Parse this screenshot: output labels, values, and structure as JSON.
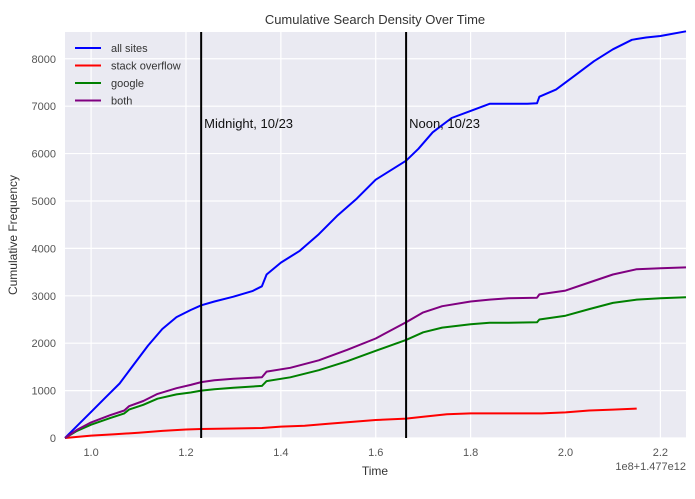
{
  "chart_data": {
    "type": "line",
    "title": "Cumulative Search Density Over Time",
    "xlabel": "Time",
    "ylabel": "Cumulative Frequency",
    "x_offset_label": "1e8+1.477e12",
    "xlim": [
      0.945,
      2.254
    ],
    "ylim": [
      0,
      8565
    ],
    "xticks": [
      1.0,
      1.2,
      1.4,
      1.6,
      1.8,
      2.0,
      2.2
    ],
    "xtick_labels": [
      "1.0",
      "1.2",
      "1.4",
      "1.6",
      "1.8",
      "2.0",
      "2.2"
    ],
    "yticks": [
      0,
      1000,
      2000,
      3000,
      4000,
      5000,
      6000,
      7000,
      8000
    ],
    "ytick_labels": [
      "0",
      "1000",
      "2000",
      "3000",
      "4000",
      "5000",
      "6000",
      "7000",
      "8000"
    ],
    "grid": true,
    "background": "#eaeaf2",
    "legend": {
      "position": "upper left",
      "entries": [
        "all sites",
        "stack overflow",
        "google",
        "both"
      ]
    },
    "series": [
      {
        "name": "all sites",
        "color": "#0000ff",
        "x": [
          0.945,
          0.97,
          1.0,
          1.03,
          1.06,
          1.09,
          1.12,
          1.15,
          1.18,
          1.21,
          1.232,
          1.26,
          1.3,
          1.34,
          1.36,
          1.37,
          1.4,
          1.44,
          1.48,
          1.52,
          1.56,
          1.6,
          1.64,
          1.664,
          1.69,
          1.72,
          1.76,
          1.8,
          1.84,
          1.88,
          1.92,
          1.94,
          1.945,
          1.98,
          2.02,
          2.06,
          2.1,
          2.14,
          2.17,
          2.2,
          2.254
        ],
        "y": [
          0,
          250,
          550,
          850,
          1150,
          1550,
          1950,
          2300,
          2550,
          2700,
          2800,
          2880,
          2980,
          3100,
          3200,
          3450,
          3700,
          3950,
          4300,
          4700,
          5050,
          5450,
          5700,
          5850,
          6100,
          6450,
          6750,
          6900,
          7050,
          7050,
          7050,
          7060,
          7200,
          7350,
          7650,
          7950,
          8200,
          8400,
          8450,
          8480,
          8580
        ]
      },
      {
        "name": "stack overflow",
        "color": "#ff0000",
        "x": [
          0.945,
          1.0,
          1.05,
          1.1,
          1.15,
          1.2,
          1.232,
          1.3,
          1.36,
          1.4,
          1.45,
          1.5,
          1.55,
          1.6,
          1.664,
          1.7,
          1.75,
          1.8,
          1.9,
          1.95,
          2.0,
          2.05,
          2.1,
          2.15
        ],
        "y": [
          0,
          50,
          80,
          110,
          150,
          180,
          190,
          200,
          210,
          240,
          260,
          300,
          340,
          380,
          410,
          450,
          500,
          520,
          520,
          520,
          540,
          580,
          600,
          620
        ]
      },
      {
        "name": "google",
        "color": "#008000",
        "x": [
          0.945,
          0.97,
          1.0,
          1.04,
          1.07,
          1.08,
          1.11,
          1.14,
          1.18,
          1.21,
          1.232,
          1.26,
          1.3,
          1.36,
          1.37,
          1.42,
          1.48,
          1.54,
          1.6,
          1.664,
          1.7,
          1.74,
          1.8,
          1.84,
          1.88,
          1.94,
          1.945,
          2.0,
          2.05,
          2.1,
          2.15,
          2.2,
          2.254
        ],
        "y": [
          0,
          150,
          280,
          420,
          520,
          600,
          700,
          830,
          920,
          960,
          1000,
          1030,
          1060,
          1100,
          1200,
          1280,
          1430,
          1620,
          1840,
          2070,
          2230,
          2330,
          2400,
          2430,
          2430,
          2440,
          2500,
          2580,
          2720,
          2850,
          2920,
          2950,
          2970
        ]
      },
      {
        "name": "both",
        "color": "#800080",
        "x": [
          0.945,
          0.97,
          1.0,
          1.04,
          1.07,
          1.08,
          1.11,
          1.14,
          1.18,
          1.21,
          1.232,
          1.26,
          1.3,
          1.36,
          1.37,
          1.42,
          1.48,
          1.54,
          1.6,
          1.664,
          1.7,
          1.74,
          1.8,
          1.84,
          1.88,
          1.94,
          1.945,
          2.0,
          2.05,
          2.1,
          2.15,
          2.2,
          2.254
        ],
        "y": [
          0,
          170,
          330,
          480,
          580,
          670,
          780,
          930,
          1050,
          1120,
          1180,
          1220,
          1250,
          1280,
          1400,
          1480,
          1640,
          1860,
          2100,
          2440,
          2650,
          2780,
          2880,
          2920,
          2950,
          2960,
          3030,
          3110,
          3280,
          3450,
          3560,
          3580,
          3600
        ]
      }
    ],
    "vlines": [
      {
        "x": 1.232,
        "color": "#000000",
        "label": "Midnight, 10/23"
      },
      {
        "x": 1.664,
        "color": "#000000",
        "label": "Noon, 10/23"
      }
    ]
  }
}
